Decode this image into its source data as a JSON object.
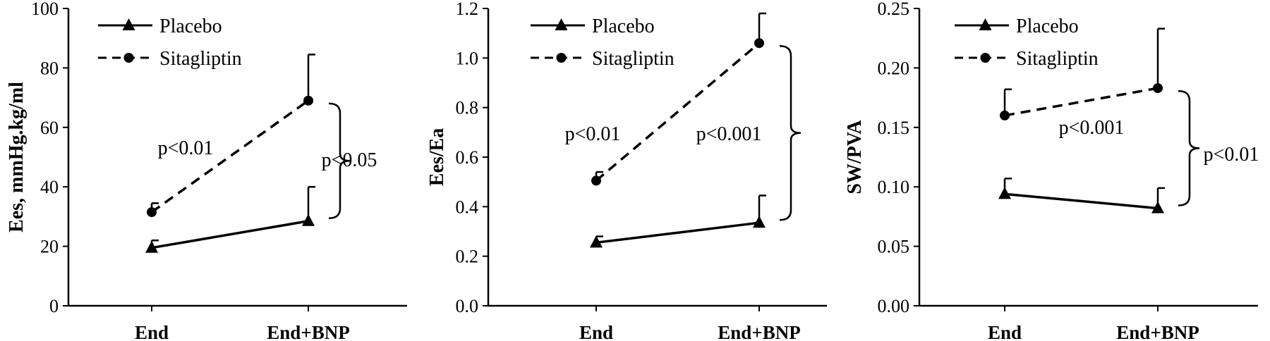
{
  "chart_data": [
    {
      "type": "line",
      "categories": [
        "End",
        "End+BNP"
      ],
      "ylabel": "Ees, mmHg.kg/ml",
      "ylim": [
        0,
        100
      ],
      "yticks": [
        0,
        20,
        40,
        60,
        80,
        100
      ],
      "ytick_labels": [
        "0",
        "20",
        "40",
        "60",
        "80",
        "100"
      ],
      "grid": false,
      "legend_position": "top-left",
      "series": [
        {
          "name": "Placebo",
          "marker": "triangle",
          "line": "solid",
          "values": [
            19.5,
            28.5
          ],
          "error": [
            2.5,
            11.5
          ]
        },
        {
          "name": "Sitagliptin",
          "marker": "circle",
          "line": "dashed",
          "values": [
            31.5,
            69
          ],
          "error": [
            3,
            15.5
          ]
        }
      ],
      "annotations": [
        {
          "text": "p<0.01",
          "anchor": "sitagliptin-change"
        },
        {
          "text": "p<0.05",
          "anchor": "group-bracket"
        }
      ]
    },
    {
      "type": "line",
      "categories": [
        "End",
        "End+BNP"
      ],
      "ylabel": "Ees/Ea",
      "ylim": [
        0,
        1.2
      ],
      "yticks": [
        0,
        0.2,
        0.4,
        0.6,
        0.8,
        1.0,
        1.2
      ],
      "ytick_labels": [
        "0.0",
        "0.2",
        "0.4",
        "0.6",
        "0.8",
        "1.0",
        "1.2"
      ],
      "grid": false,
      "legend_position": "top-left",
      "series": [
        {
          "name": "Placebo",
          "marker": "triangle",
          "line": "solid",
          "values": [
            0.255,
            0.335
          ],
          "error": [
            0.025,
            0.11
          ]
        },
        {
          "name": "Sitagliptin",
          "marker": "circle",
          "line": "dashed",
          "values": [
            0.505,
            1.06
          ],
          "error": [
            0.035,
            0.12
          ]
        }
      ],
      "annotations": [
        {
          "text": "p<0.01",
          "anchor": "sitagliptin-change"
        },
        {
          "text": "p<0.001",
          "anchor": "group-bracket"
        }
      ]
    },
    {
      "type": "line",
      "categories": [
        "End",
        "End+BNP"
      ],
      "ylabel": "SW/PVA",
      "ylim": [
        0,
        0.25
      ],
      "yticks": [
        0,
        0.05,
        0.1,
        0.15,
        0.2,
        0.25
      ],
      "ytick_labels": [
        "0.00",
        "0.05",
        "0.10",
        "0.15",
        "0.20",
        "0.25"
      ],
      "grid": false,
      "legend_position": "top-left",
      "series": [
        {
          "name": "Placebo",
          "marker": "triangle",
          "line": "solid",
          "values": [
            0.094,
            0.082
          ],
          "error": [
            0.013,
            0.017
          ]
        },
        {
          "name": "Sitagliptin",
          "marker": "circle",
          "line": "dashed",
          "values": [
            0.16,
            0.183
          ],
          "error": [
            0.022,
            0.05
          ]
        }
      ],
      "annotations": [
        {
          "text": "p<0.001",
          "anchor": "sitagliptin-change"
        },
        {
          "text": "p<0.01",
          "anchor": "group-bracket"
        }
      ]
    }
  ]
}
